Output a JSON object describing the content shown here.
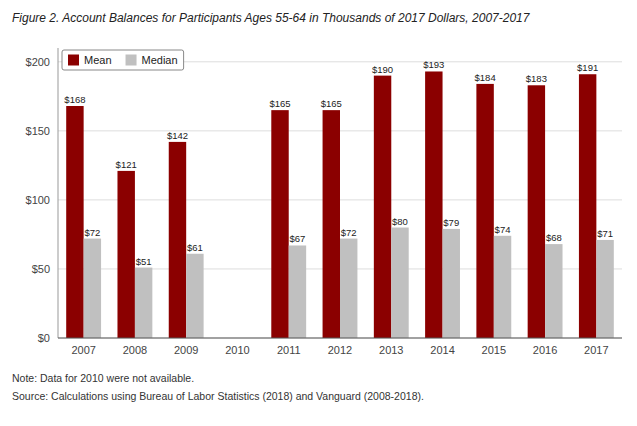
{
  "chart_data": {
    "type": "bar",
    "title": "Figure 2. Account Balances for Participants Ages 55-64 in Thousands of 2017 Dollars, 2007-2017",
    "categories": [
      "2007",
      "2008",
      "2009",
      "2010",
      "2011",
      "2012",
      "2013",
      "2014",
      "2015",
      "2016",
      "2017"
    ],
    "series": [
      {
        "name": "Mean",
        "color": "#8B0000",
        "values": [
          168,
          121,
          142,
          null,
          165,
          165,
          190,
          193,
          184,
          183,
          191
        ],
        "value_labels": [
          "$168",
          "$121",
          "$142",
          null,
          "$165",
          "$165",
          "$190",
          "$193",
          "$184",
          "$183",
          "$191"
        ]
      },
      {
        "name": "Median",
        "color": "#C0C0C0",
        "values": [
          72,
          51,
          61,
          null,
          67,
          72,
          80,
          79,
          74,
          68,
          71
        ],
        "value_labels": [
          "$72",
          "$51",
          "$61",
          null,
          "$67",
          "$72",
          "$80",
          "$79",
          "$74",
          "$68",
          "$71"
        ]
      }
    ],
    "ylim": [
      0,
      210
    ],
    "yticks": [
      {
        "value": 0,
        "label": "$0"
      },
      {
        "value": 50,
        "label": "$50"
      },
      {
        "value": 100,
        "label": "$100"
      },
      {
        "value": 150,
        "label": "$150"
      },
      {
        "value": 200,
        "label": "$200"
      }
    ],
    "grid": true,
    "legend": "upper left",
    "data_labels": true,
    "annotations": [
      "Note: Data for 2010 were not available.",
      "Source: Calculations using Bureau of Labor Statistics (2018) and Vanguard (2008-2018)."
    ]
  }
}
